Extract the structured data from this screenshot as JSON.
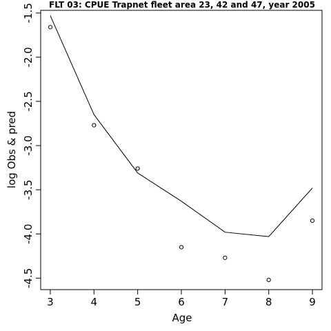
{
  "chart_data": {
    "type": "line",
    "title": "FLT 03: CPUE Trapnet fleet area 23, 42 and 47, year 2005",
    "xlabel": "Age",
    "ylabel": "log Obs & pred",
    "x": [
      3,
      4,
      5,
      6,
      7,
      8,
      9
    ],
    "xlim": [
      2.78,
      9.22
    ],
    "ylim": [
      -4.63,
      -1.47
    ],
    "xticks": [
      3,
      4,
      5,
      6,
      7,
      8,
      9
    ],
    "yticks": [
      -4.5,
      -4.0,
      -3.5,
      -3.0,
      -2.5,
      -2.0,
      -1.5
    ],
    "ytick_labels": [
      "-4.5",
      "-4.0",
      "-3.5",
      "-3.0",
      "-2.5",
      "-2.0",
      "-1.5"
    ],
    "grid": false,
    "series": [
      {
        "kind": "points",
        "values": [
          -1.66,
          -2.77,
          -3.26,
          -4.15,
          -4.27,
          -4.52,
          -3.85
        ],
        "color": "#000000"
      },
      {
        "kind": "line",
        "values": [
          -1.53,
          -2.65,
          -3.31,
          -3.63,
          -3.98,
          -4.03,
          -3.48
        ],
        "color": "#000000"
      }
    ]
  }
}
